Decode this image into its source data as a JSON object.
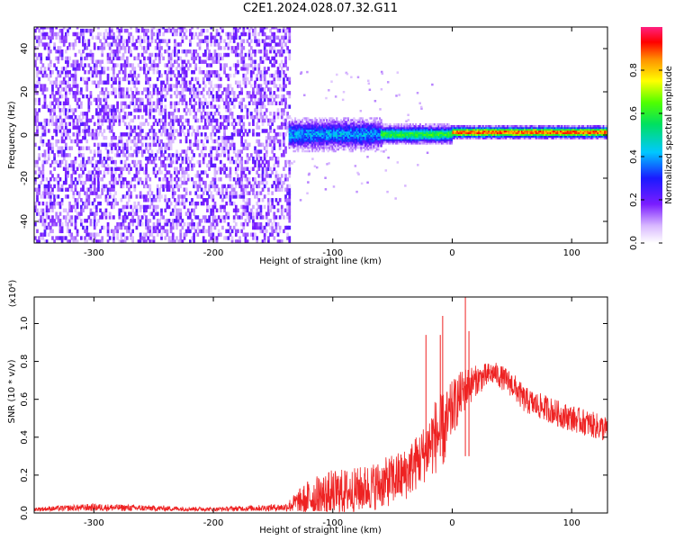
{
  "title": "C2E1.2024.028.07.32.G11",
  "chart_data": [
    {
      "type": "heatmap",
      "xlabel": "Height of straight line (km)",
      "ylabel": "Frequency (Hz)",
      "xlim": [
        -350,
        130
      ],
      "ylim": [
        -50,
        50
      ],
      "xticks": [
        -300,
        -200,
        -100,
        0,
        100
      ],
      "yticks": [
        -40,
        -20,
        0,
        20,
        40
      ],
      "xtick_labels": [
        "-300",
        "-200",
        "-100",
        "0",
        "100"
      ],
      "ytick_labels": [
        "-40",
        "-20",
        "0",
        "20",
        "40"
      ],
      "colorbar": {
        "label": "Normalized spectral amplitude",
        "range": [
          0,
          1
        ],
        "ticks": [
          0.0,
          0.2,
          0.4,
          0.6,
          0.8
        ],
        "tick_labels": [
          "0.0",
          "0.2",
          "0.4",
          "0.6",
          "0.8"
        ]
      },
      "regions": [
        {
          "x_range": [
            -350,
            -137
          ],
          "freq_range": [
            -50,
            50
          ],
          "amplitude": 0.1,
          "pattern": "noise"
        },
        {
          "x_range": [
            -137,
            -60
          ],
          "freq_center": 0,
          "freq_halfwidth": 5,
          "amplitude": 0.4
        },
        {
          "x_range": [
            -60,
            0
          ],
          "freq_center": 0,
          "freq_halfwidth": 3,
          "amplitude": 0.6
        },
        {
          "x_range": [
            0,
            130
          ],
          "freq_center": 1,
          "freq_halfwidth": 2,
          "amplitude": 0.9
        }
      ]
    },
    {
      "type": "line",
      "xlabel": "Height of straight line (km)",
      "ylabel": "SNR (10 * v/v)",
      "yscale_note": "(x10⁴)",
      "xlim": [
        -350,
        130
      ],
      "ylim": [
        0,
        1.14
      ],
      "xticks": [
        -300,
        -200,
        -100,
        0,
        100
      ],
      "yticks": [
        0.0,
        0.2,
        0.4,
        0.6,
        0.8,
        1.0
      ],
      "xtick_labels": [
        "-300",
        "-200",
        "-100",
        "0",
        "100"
      ],
      "ytick_labels": [
        "0.0",
        "0.2",
        "0.4",
        "0.6",
        "0.8",
        "1.0"
      ],
      "color": "#ee2222",
      "envelope": {
        "x": [
          -350,
          -300,
          -200,
          -140,
          -120,
          -100,
          -80,
          -60,
          -40,
          -25,
          -15,
          -5,
          0,
          10,
          20,
          35,
          50,
          60,
          70,
          80,
          90,
          100,
          110,
          130
        ],
        "base": [
          0.02,
          0.03,
          0.02,
          0.03,
          0.08,
          0.1,
          0.12,
          0.15,
          0.2,
          0.3,
          0.4,
          0.45,
          0.55,
          0.65,
          0.7,
          0.74,
          0.68,
          0.6,
          0.57,
          0.55,
          0.52,
          0.5,
          0.48,
          0.44
        ],
        "noise": [
          0.01,
          0.02,
          0.01,
          0.02,
          0.1,
          0.13,
          0.12,
          0.13,
          0.14,
          0.15,
          0.2,
          0.2,
          0.15,
          0.12,
          0.08,
          0.06,
          0.07,
          0.07,
          0.07,
          0.07,
          0.07,
          0.07,
          0.07,
          0.07
        ]
      },
      "spikes": [
        {
          "x": -22,
          "y": 0.94
        },
        {
          "x": -10,
          "y": 0.94
        },
        {
          "x": -8,
          "y": 1.04
        },
        {
          "x": 11,
          "y": 1.14
        },
        {
          "x": 14,
          "y": 0.96
        }
      ]
    }
  ]
}
